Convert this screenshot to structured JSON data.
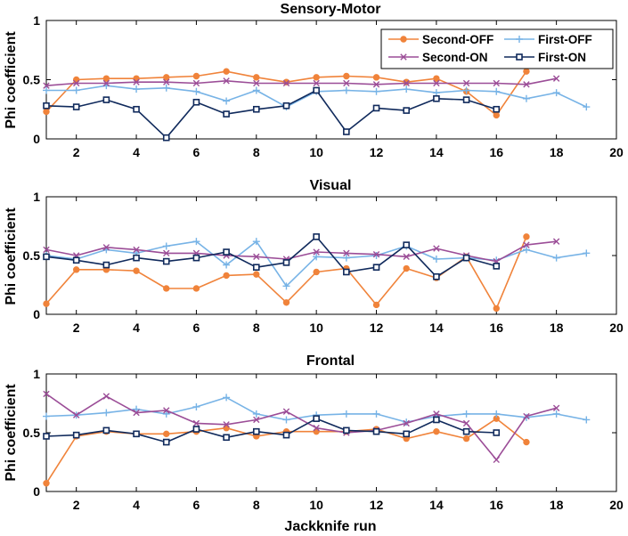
{
  "colors": {
    "Second-OFF": "#f0833a",
    "First-OFF": "#77b3e6",
    "Second-ON": "#9b4d97",
    "First-ON": "#102a5c"
  },
  "markers": {
    "Second-OFF": "circle",
    "First-OFF": "plus",
    "Second-ON": "cross",
    "First-ON": "square"
  },
  "chart_data": [
    {
      "type": "line",
      "title": "Sensory-Motor",
      "xlabel": "",
      "ylabel": "Phi coefficient",
      "xlim": [
        1,
        20
      ],
      "ylim": [
        0,
        1
      ],
      "xticks": [
        2,
        4,
        6,
        8,
        10,
        12,
        14,
        16,
        18,
        20
      ],
      "yticks": [
        0,
        0.5,
        1
      ],
      "ytick_labels": [
        "0",
        "0.5",
        "1"
      ],
      "legend": "top-right",
      "series": [
        {
          "name": "Second-OFF",
          "x": [
            1,
            2,
            3,
            4,
            5,
            6,
            7,
            8,
            9,
            10,
            11,
            12,
            13,
            14,
            15,
            16,
            17
          ],
          "values": [
            0.23,
            0.5,
            0.51,
            0.51,
            0.52,
            0.53,
            0.57,
            0.52,
            0.48,
            0.52,
            0.53,
            0.52,
            0.48,
            0.51,
            0.4,
            0.2,
            0.57
          ]
        },
        {
          "name": "First-OFF",
          "x": [
            1,
            2,
            3,
            4,
            5,
            6,
            7,
            8,
            9,
            10,
            11,
            12,
            13,
            14,
            15,
            16,
            17,
            18,
            19
          ],
          "values": [
            0.41,
            0.41,
            0.45,
            0.42,
            0.43,
            0.4,
            0.32,
            0.41,
            0.27,
            0.4,
            0.41,
            0.4,
            0.42,
            0.39,
            0.41,
            0.4,
            0.34,
            0.39,
            0.27
          ]
        },
        {
          "name": "Second-ON",
          "x": [
            1,
            2,
            3,
            4,
            5,
            6,
            7,
            8,
            9,
            10,
            11,
            12,
            13,
            14,
            15,
            16,
            17,
            18
          ],
          "values": [
            0.45,
            0.47,
            0.47,
            0.48,
            0.48,
            0.47,
            0.49,
            0.47,
            0.47,
            0.47,
            0.47,
            0.46,
            0.47,
            0.47,
            0.47,
            0.47,
            0.46,
            0.51
          ]
        },
        {
          "name": "First-ON",
          "x": [
            1,
            2,
            3,
            4,
            5,
            6,
            7,
            8,
            9,
            10,
            11,
            12,
            13,
            14,
            15,
            16
          ],
          "values": [
            0.28,
            0.27,
            0.33,
            0.25,
            0.01,
            0.31,
            0.21,
            0.25,
            0.28,
            0.41,
            0.06,
            0.26,
            0.24,
            0.34,
            0.33,
            0.25
          ]
        }
      ]
    },
    {
      "type": "line",
      "title": "Visual",
      "xlabel": "",
      "ylabel": "Phi coefficient",
      "xlim": [
        1,
        20
      ],
      "ylim": [
        0,
        1
      ],
      "xticks": [
        2,
        4,
        6,
        8,
        10,
        12,
        14,
        16,
        18,
        20
      ],
      "yticks": [
        0,
        0.5,
        1
      ],
      "ytick_labels": [
        "0",
        "0.5",
        "1"
      ],
      "series": [
        {
          "name": "Second-OFF",
          "x": [
            1,
            2,
            3,
            4,
            5,
            6,
            7,
            8,
            9,
            10,
            11,
            12,
            13,
            14,
            15,
            16,
            17
          ],
          "values": [
            0.09,
            0.38,
            0.38,
            0.37,
            0.22,
            0.22,
            0.33,
            0.34,
            0.1,
            0.36,
            0.39,
            0.08,
            0.39,
            0.31,
            0.49,
            0.05,
            0.66
          ]
        },
        {
          "name": "First-OFF",
          "x": [
            1,
            2,
            3,
            4,
            5,
            6,
            7,
            8,
            9,
            10,
            11,
            12,
            13,
            14,
            15,
            16,
            17,
            18,
            19
          ],
          "values": [
            0.5,
            0.47,
            0.55,
            0.52,
            0.58,
            0.62,
            0.42,
            0.62,
            0.24,
            0.49,
            0.48,
            0.5,
            0.58,
            0.47,
            0.48,
            0.46,
            0.55,
            0.48,
            0.52
          ]
        },
        {
          "name": "Second-ON",
          "x": [
            1,
            2,
            3,
            4,
            5,
            6,
            7,
            8,
            9,
            10,
            11,
            12,
            13,
            14,
            15,
            16,
            17,
            18
          ],
          "values": [
            0.55,
            0.5,
            0.57,
            0.55,
            0.52,
            0.52,
            0.5,
            0.49,
            0.47,
            0.53,
            0.52,
            0.51,
            0.49,
            0.56,
            0.5,
            0.45,
            0.59,
            0.62
          ]
        },
        {
          "name": "First-ON",
          "x": [
            1,
            2,
            3,
            4,
            5,
            6,
            7,
            8,
            9,
            10,
            11,
            12,
            13,
            14,
            15,
            16
          ],
          "values": [
            0.49,
            0.46,
            0.42,
            0.48,
            0.45,
            0.48,
            0.53,
            0.4,
            0.44,
            0.66,
            0.36,
            0.4,
            0.59,
            0.32,
            0.48,
            0.41
          ]
        }
      ]
    },
    {
      "type": "line",
      "title": "Frontal",
      "xlabel": "Jackknife run",
      "ylabel": "Phi coefficient",
      "xlim": [
        1,
        20
      ],
      "ylim": [
        0,
        1
      ],
      "xticks": [
        2,
        4,
        6,
        8,
        10,
        12,
        14,
        16,
        18,
        20
      ],
      "yticks": [
        0,
        0.5,
        1
      ],
      "ytick_labels": [
        "0",
        "0.5",
        "1"
      ],
      "series": [
        {
          "name": "Second-OFF",
          "x": [
            1,
            2,
            3,
            4,
            5,
            6,
            7,
            8,
            9,
            10,
            11,
            12,
            13,
            14,
            15,
            16,
            17
          ],
          "values": [
            0.07,
            0.47,
            0.51,
            0.49,
            0.49,
            0.51,
            0.54,
            0.47,
            0.51,
            0.51,
            0.51,
            0.53,
            0.45,
            0.51,
            0.45,
            0.62,
            0.42
          ]
        },
        {
          "name": "First-OFF",
          "x": [
            1,
            2,
            3,
            4,
            5,
            6,
            7,
            8,
            9,
            10,
            11,
            12,
            13,
            14,
            15,
            16,
            17,
            18,
            19
          ],
          "values": [
            0.64,
            0.65,
            0.67,
            0.7,
            0.66,
            0.72,
            0.8,
            0.66,
            0.61,
            0.65,
            0.66,
            0.66,
            0.59,
            0.64,
            0.66,
            0.66,
            0.63,
            0.66,
            0.61
          ]
        },
        {
          "name": "Second-ON",
          "x": [
            1,
            2,
            3,
            4,
            5,
            6,
            7,
            8,
            9,
            10,
            11,
            12,
            13,
            14,
            15,
            16,
            17,
            18
          ],
          "values": [
            0.83,
            0.65,
            0.81,
            0.67,
            0.69,
            0.58,
            0.57,
            0.61,
            0.68,
            0.54,
            0.5,
            0.52,
            0.58,
            0.66,
            0.58,
            0.27,
            0.64,
            0.71
          ]
        },
        {
          "name": "First-ON",
          "x": [
            1,
            2,
            3,
            4,
            5,
            6,
            7,
            8,
            9,
            10,
            11,
            12,
            13,
            14,
            15,
            16
          ],
          "values": [
            0.47,
            0.48,
            0.52,
            0.49,
            0.42,
            0.53,
            0.46,
            0.51,
            0.48,
            0.62,
            0.52,
            0.51,
            0.49,
            0.61,
            0.51,
            0.5
          ]
        }
      ]
    }
  ]
}
